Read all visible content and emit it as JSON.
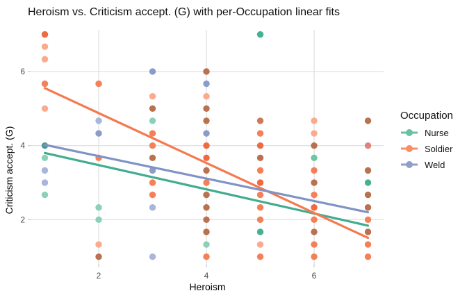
{
  "chart_data": {
    "type": "scatter",
    "title": "Heroism vs. Criticism accept. (G) with per-Occupation linear fits",
    "xlabel": "Heroism",
    "ylabel": "Criticism accept. (G)",
    "x_ticks": [
      2,
      4,
      6
    ],
    "y_ticks": [
      2,
      4,
      6
    ],
    "x_range": [
      0.748,
      7.29
    ],
    "y_range": [
      0.807,
      7.124
    ],
    "grid": "major gridlines only, light gray, no panel border",
    "legend_position": "right",
    "point_colors": {
      "o": "#fbaa8d",
      "O": "#f58058",
      "R": "#ee6a40",
      "g": "#8cd1b7",
      "G": "#45b192",
      "G2": "#6ec6a4",
      "T": "#4a9b90",
      "b": "#a9b5da",
      "B": "#8b9cca",
      "m": "#b9714f",
      "n": "#cb7a5e",
      "p": "#e0837a"
    },
    "points": [
      [
        1,
        7,
        "R"
      ],
      [
        1,
        6.67,
        "o"
      ],
      [
        1,
        6.33,
        "o"
      ],
      [
        1,
        5.67,
        "O"
      ],
      [
        1,
        5,
        "o"
      ],
      [
        1,
        4,
        "T"
      ],
      [
        1,
        3.67,
        "g"
      ],
      [
        1,
        3.33,
        "b"
      ],
      [
        1,
        3,
        "b"
      ],
      [
        1,
        2.67,
        "g"
      ],
      [
        2,
        5.67,
        "O"
      ],
      [
        2,
        4.67,
        "b"
      ],
      [
        2,
        4.33,
        "B"
      ],
      [
        2,
        3.67,
        "O"
      ],
      [
        2,
        2.33,
        "g"
      ],
      [
        2,
        2,
        "g"
      ],
      [
        2,
        1.33,
        "o"
      ],
      [
        2,
        1,
        "m"
      ],
      [
        3,
        6,
        "B"
      ],
      [
        3,
        5.33,
        "o"
      ],
      [
        3,
        5,
        "m"
      ],
      [
        3,
        4.67,
        "g"
      ],
      [
        3,
        4.33,
        "O"
      ],
      [
        3,
        4,
        "O"
      ],
      [
        3,
        3.67,
        "m"
      ],
      [
        3,
        3.33,
        "B"
      ],
      [
        3,
        3,
        "O"
      ],
      [
        3,
        2.67,
        "O"
      ],
      [
        3,
        2.33,
        "b"
      ],
      [
        3,
        1,
        "b"
      ],
      [
        4,
        6,
        "m"
      ],
      [
        4,
        5.67,
        "B"
      ],
      [
        4,
        5.33,
        "o"
      ],
      [
        4,
        5,
        "m"
      ],
      [
        4,
        4.67,
        "m"
      ],
      [
        4,
        4.33,
        "B"
      ],
      [
        4,
        4,
        "R"
      ],
      [
        4,
        3.67,
        "R"
      ],
      [
        4,
        3.33,
        "m"
      ],
      [
        4,
        3,
        "O"
      ],
      [
        4,
        2.67,
        "m"
      ],
      [
        4,
        2.33,
        "m"
      ],
      [
        4,
        2,
        "m"
      ],
      [
        4,
        1.67,
        "m"
      ],
      [
        4,
        1.33,
        "g"
      ],
      [
        4,
        1,
        "O"
      ],
      [
        5,
        7,
        "G"
      ],
      [
        5,
        4.67,
        "n"
      ],
      [
        5,
        4.33,
        "O"
      ],
      [
        5,
        4,
        "R"
      ],
      [
        5,
        3.67,
        "m"
      ],
      [
        5,
        3.33,
        "O"
      ],
      [
        5,
        3,
        "R"
      ],
      [
        5,
        2.67,
        "O"
      ],
      [
        5,
        2.33,
        "O"
      ],
      [
        5,
        2,
        "O"
      ],
      [
        5,
        1.67,
        "G"
      ],
      [
        5,
        1.33,
        "o"
      ],
      [
        5,
        1,
        "O"
      ],
      [
        6,
        4.67,
        "o"
      ],
      [
        6,
        4.33,
        "o"
      ],
      [
        6,
        4,
        "m"
      ],
      [
        6,
        3.67,
        "G2"
      ],
      [
        6,
        3.33,
        "O"
      ],
      [
        6,
        3,
        "m"
      ],
      [
        6,
        2.67,
        "O"
      ],
      [
        6,
        2.33,
        "R"
      ],
      [
        6,
        2,
        "O"
      ],
      [
        6,
        1.67,
        "m"
      ],
      [
        6,
        1.33,
        "O"
      ],
      [
        6,
        1,
        "O"
      ],
      [
        7,
        4.67,
        "m"
      ],
      [
        7,
        4,
        "p"
      ],
      [
        7,
        3.33,
        "m"
      ],
      [
        7,
        3,
        "G"
      ],
      [
        7,
        2.67,
        "m"
      ],
      [
        7,
        2.33,
        "m"
      ],
      [
        7,
        2,
        "O"
      ],
      [
        7,
        1.67,
        "m"
      ],
      [
        7,
        1.33,
        "O"
      ],
      [
        7,
        1,
        "O"
      ]
    ],
    "fits": [
      {
        "name": "Nurse",
        "color": "#41ad8e",
        "x1": 1,
        "y1": 3.8,
        "x2": 7,
        "y2": 1.84
      },
      {
        "name": "Soldier",
        "color": "#f5794e",
        "x1": 1,
        "y1": 5.55,
        "x2": 7,
        "y2": 1.51
      },
      {
        "name": "Weld",
        "color": "#8093c5",
        "x1": 1,
        "y1": 4.02,
        "x2": 7,
        "y2": 2.2
      }
    ]
  },
  "legend": {
    "title": "Occupation",
    "items": [
      {
        "id": "nurse",
        "label": "Nurse",
        "color": "#66c2a5"
      },
      {
        "id": "soldier",
        "label": "Soldier",
        "color": "#fc8d62"
      },
      {
        "id": "weld",
        "label": "Weld",
        "color": "#8da0cb"
      }
    ]
  },
  "colors": {
    "background": "#ffffff",
    "grid": "#e3e3e3",
    "tick": "#d2d2d2",
    "tick_label": "#4d4d4d",
    "text": "#000000"
  }
}
